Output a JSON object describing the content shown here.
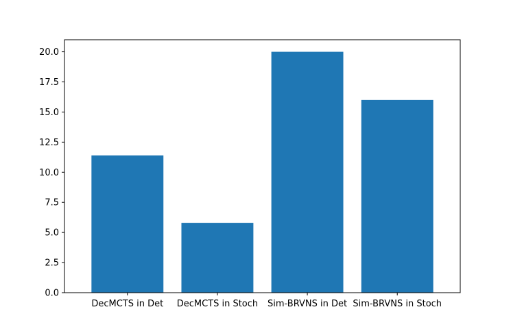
{
  "chart_data": {
    "type": "bar",
    "categories": [
      "DecMCTS in Det",
      "DecMCTS in Stoch",
      "Sim-BRVNS in Det",
      "Sim-BRVNS in Stoch"
    ],
    "values": [
      11.4,
      5.8,
      20.0,
      16.0
    ],
    "yticks": [
      "0.0",
      "2.5",
      "5.0",
      "7.5",
      "10.0",
      "12.5",
      "15.0",
      "17.5",
      "20.0"
    ],
    "ylim": [
      0,
      21.0
    ],
    "title": "",
    "xlabel": "",
    "ylabel": "",
    "grid": false,
    "bar_color": "#1f77b4"
  }
}
